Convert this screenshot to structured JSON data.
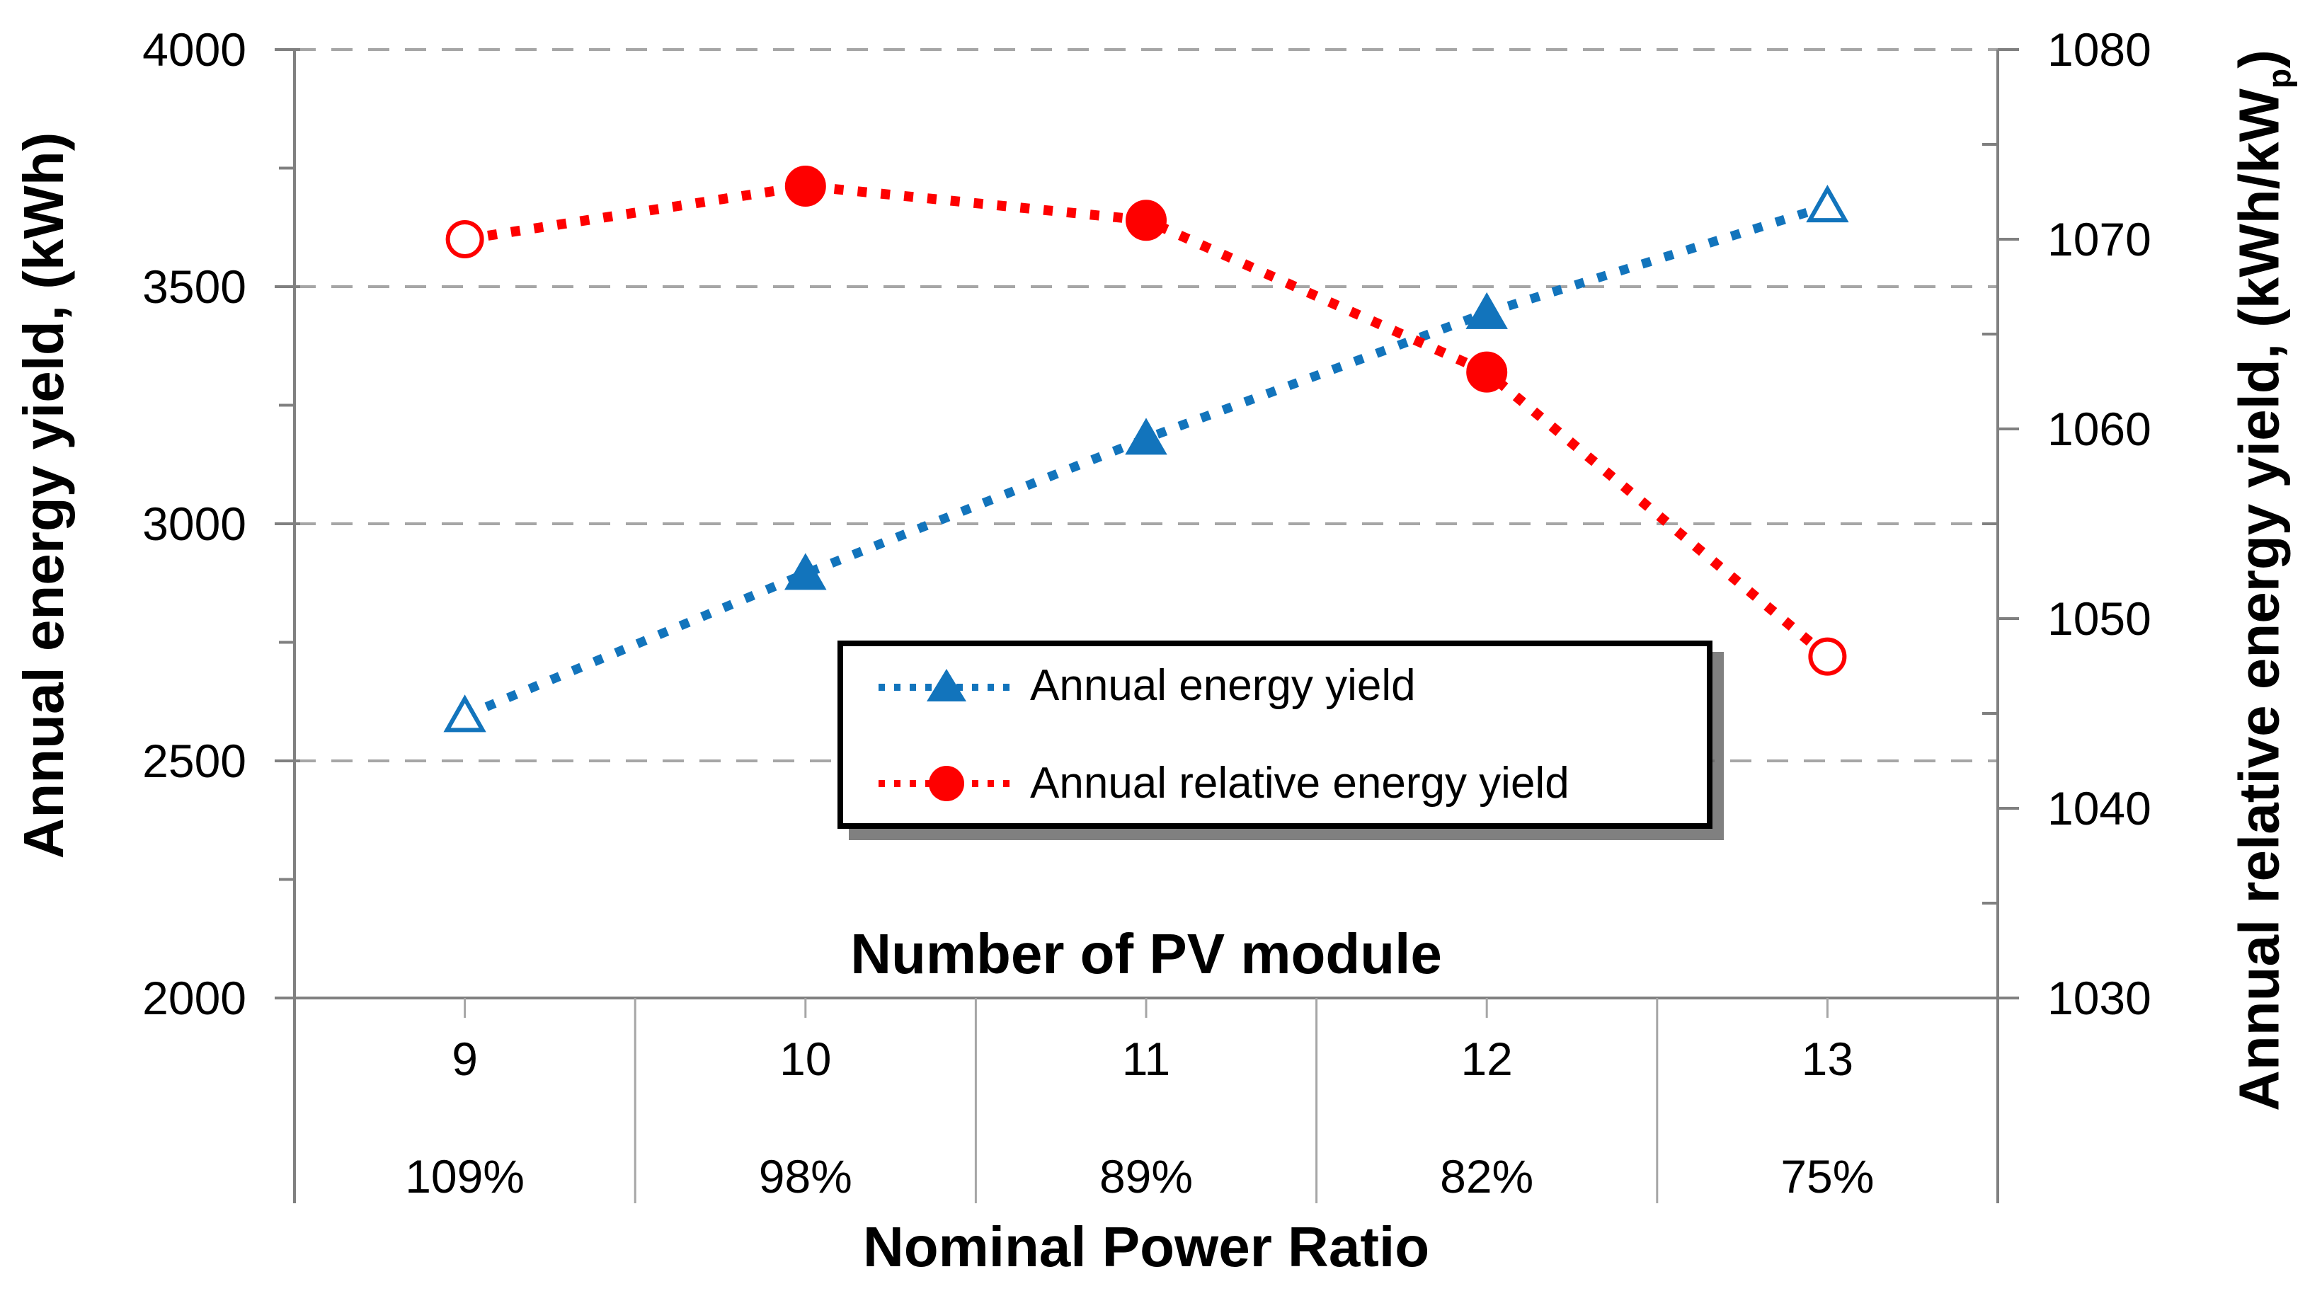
{
  "chart_data": {
    "type": "line",
    "subtype": "dual-axis dotted lines with markers",
    "categories": [
      "9",
      "10",
      "11",
      "12",
      "13"
    ],
    "secondary_category_labels": [
      "109%",
      "98%",
      "89%",
      "82%",
      "75%"
    ],
    "category_axis_title": "Number of PV module",
    "secondary_category_axis_title": "Nominal Power Ratio",
    "series": [
      {
        "name": "Annual energy yield",
        "axis": "left",
        "color": "#1274BC",
        "marker": "triangle",
        "line_style": "dotted",
        "values": [
          2595,
          2895,
          3180,
          3445,
          3670
        ],
        "marker_fill": [
          "open",
          "filled",
          "filled",
          "filled",
          "open"
        ]
      },
      {
        "name": "Annual relative energy yield",
        "axis": "right",
        "color": "#FE0000",
        "marker": "circle",
        "line_style": "dotted",
        "values": [
          1070,
          1072.8,
          1071,
          1063,
          1048
        ],
        "marker_fill": [
          "open",
          "filled",
          "filled",
          "filled",
          "open"
        ]
      }
    ],
    "left_axis": {
      "title": "Annual energy yield, (kWh)",
      "min": 2000,
      "max": 4000,
      "major_step": 500,
      "minor_step": 250,
      "tick_labels": [
        "4000",
        "3500",
        "3000",
        "2500",
        "2000"
      ]
    },
    "right_axis": {
      "title_parts": {
        "pre": "Annual relative energy yield, (kWh/kW",
        "sub": "p",
        "post": ")"
      },
      "min": 1030,
      "max": 1080,
      "major_step": 10,
      "minor_step": 5,
      "tick_labels": [
        "1080",
        "1070",
        "1060",
        "1050",
        "1040",
        "1030"
      ]
    },
    "grid": {
      "show": true,
      "style": "dashed",
      "color": "#A6A6A6"
    },
    "axis_line_color": "#808080",
    "band_line_color": "#A6A6A6",
    "legend": {
      "position": "inside-bottom-center",
      "border_color": "#000000",
      "background": "#ffffff"
    }
  }
}
